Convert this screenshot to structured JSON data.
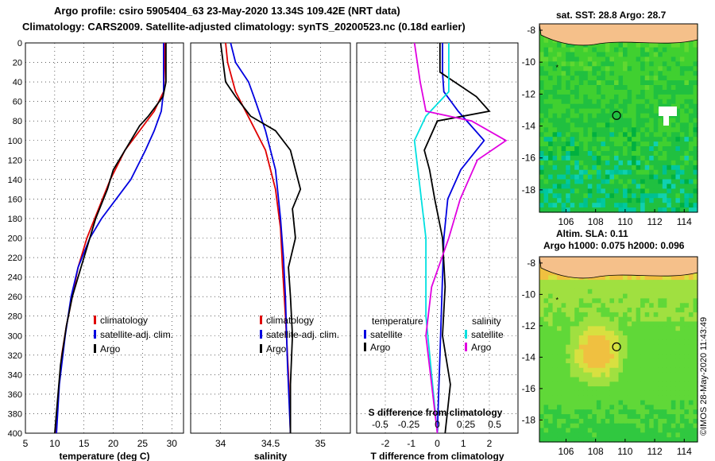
{
  "header": {
    "title_line1": "Argo profile: csiro 5905404_63 23-May-2020 13.34S 109.42E (NRT data)",
    "title_line2": "Climatology: CARS2009. Satellite-adjusted climatology: synTS_20200523.nc (0.18d earlier)"
  },
  "colors": {
    "argo": "#000000",
    "climatology": "#e00000",
    "satellite": "#0000e0",
    "sal_diff": "#e000e0",
    "temp_sat_diff": "#00e0e0"
  },
  "chart_data": [
    {
      "type": "line",
      "title": "",
      "xlabel": "temperature (deg C)",
      "ylabel": "",
      "xlim": [
        5,
        32
      ],
      "ylim": [
        400,
        0
      ],
      "xticks": [
        5,
        10,
        15,
        20,
        25,
        30
      ],
      "yticks": [
        0,
        20,
        40,
        60,
        80,
        100,
        120,
        140,
        160,
        180,
        200,
        220,
        240,
        260,
        280,
        300,
        320,
        340,
        360,
        380,
        400
      ],
      "legend": [
        "climatology",
        "satellite-adj. clim.",
        "Argo"
      ],
      "series": [
        {
          "name": "climatology",
          "color": "#e00000",
          "x": [
            28.8,
            28.8,
            28.6,
            27.0,
            24.5,
            22.0,
            19.5,
            17.5,
            15.5,
            14.0,
            13.0,
            12.0,
            11.2,
            10.6,
            10.2
          ],
          "y": [
            0,
            20,
            50,
            70,
            90,
            110,
            140,
            170,
            200,
            230,
            260,
            290,
            320,
            360,
            400
          ]
        },
        {
          "name": "satellite-adj. clim.",
          "color": "#0000e0",
          "x": [
            28.6,
            28.6,
            28.6,
            28.2,
            27.0,
            25.5,
            23.0,
            20.5,
            18.0,
            16.0,
            14.0,
            12.8,
            11.8,
            10.8,
            10.3
          ],
          "y": [
            0,
            20,
            50,
            70,
            90,
            110,
            140,
            160,
            180,
            200,
            230,
            260,
            300,
            350,
            400
          ]
        },
        {
          "name": "Argo",
          "color": "#000000",
          "x": [
            29.0,
            29.0,
            28.5,
            26.0,
            24.5,
            22.5,
            20.0,
            19.0,
            17.0,
            15.5,
            14.5,
            13.0,
            12.0,
            11.0,
            10.0
          ],
          "y": [
            0,
            40,
            55,
            75,
            85,
            105,
            130,
            150,
            180,
            210,
            230,
            260,
            290,
            330,
            400
          ]
        }
      ]
    },
    {
      "type": "line",
      "title": "",
      "xlabel": "salinity",
      "ylabel": "",
      "xlim": [
        33.7,
        35.3
      ],
      "ylim": [
        400,
        0
      ],
      "xticks": [
        34,
        34.5,
        35
      ],
      "yticks": [
        0,
        20,
        40,
        60,
        80,
        100,
        120,
        140,
        160,
        180,
        200,
        220,
        240,
        260,
        280,
        300,
        320,
        340,
        360,
        380,
        400
      ],
      "legend": [
        "climatology",
        "satellite-adj. clim.",
        "Argo"
      ],
      "series": [
        {
          "name": "climatology",
          "color": "#e00000",
          "x": [
            34.05,
            34.07,
            34.15,
            34.3,
            34.45,
            34.55,
            34.6,
            34.62,
            34.65,
            34.68,
            34.7
          ],
          "y": [
            0,
            20,
            50,
            80,
            110,
            150,
            190,
            230,
            280,
            340,
            400
          ]
        },
        {
          "name": "satellite-adj. clim.",
          "color": "#0000e0",
          "x": [
            34.1,
            34.15,
            34.28,
            34.35,
            34.45,
            34.55,
            34.6,
            34.63,
            34.65,
            34.67,
            34.7
          ],
          "y": [
            0,
            20,
            40,
            60,
            90,
            130,
            180,
            220,
            260,
            330,
            400
          ]
        },
        {
          "name": "Argo",
          "color": "#000000",
          "x": [
            34.0,
            34.05,
            34.15,
            34.3,
            34.55,
            34.7,
            34.75,
            34.8,
            34.72,
            34.75,
            34.68,
            34.7,
            34.72,
            34.7,
            34.7
          ],
          "y": [
            0,
            40,
            55,
            75,
            90,
            110,
            130,
            150,
            170,
            200,
            230,
            260,
            300,
            350,
            400
          ]
        }
      ]
    },
    {
      "type": "line",
      "title": "",
      "xlabel": "T difference from climatology",
      "x2label": "S difference from climatology",
      "ylabel": "",
      "xlim": [
        -3.1,
        3.1
      ],
      "ylim": [
        400,
        0
      ],
      "xticks": [
        -2,
        -1,
        0,
        1,
        2
      ],
      "x2ticks": [
        -0.5,
        -0.25,
        0,
        0.25,
        0.5
      ],
      "x2ticklabels": [
        "-0.5",
        "-0.25",
        "0",
        "0.25",
        "0.5"
      ],
      "yticks": [
        0,
        20,
        40,
        60,
        80,
        100,
        120,
        140,
        160,
        180,
        200,
        220,
        240,
        260,
        280,
        300,
        320,
        340,
        360,
        380,
        400
      ],
      "legend_temperature_heading": "temperature",
      "legend_salinity_heading": "salinity",
      "legend": [
        "satellite",
        "Argo",
        "satellite",
        "Argo"
      ],
      "series": [
        {
          "name": "temperature satellite",
          "color": "#0000e0",
          "x": [
            0.2,
            0.2,
            0.25,
            0.8,
            1.8,
            0.9,
            0.4,
            0.25,
            0.2,
            0.15,
            0.1,
            0.05,
            0.0
          ],
          "y": [
            0,
            30,
            50,
            70,
            100,
            130,
            160,
            200,
            240,
            280,
            320,
            360,
            400
          ]
        },
        {
          "name": "temperature Argo",
          "color": "#000000",
          "x": [
            0.1,
            0.1,
            1.5,
            2.0,
            0.0,
            -0.5,
            -0.3,
            -0.1,
            0.2,
            0.3,
            0.2,
            0.5,
            0.3
          ],
          "y": [
            0,
            30,
            55,
            70,
            80,
            110,
            130,
            160,
            200,
            250,
            300,
            350,
            400
          ]
        },
        {
          "name": "salinity satellite",
          "color": "#00e0e0",
          "x": [
            0.1,
            0.1,
            -0.1,
            -0.2,
            -0.15,
            -0.1,
            -0.1,
            -0.05,
            0.0
          ],
          "y": [
            0,
            50,
            75,
            100,
            150,
            200,
            280,
            340,
            400
          ]
        },
        {
          "name": "salinity Argo",
          "color": "#e000e0",
          "x": [
            -0.2,
            -0.15,
            -0.1,
            0.3,
            0.6,
            0.35,
            0.2,
            0.1,
            -0.05,
            -0.1,
            -0.05,
            0.0
          ],
          "y": [
            0,
            40,
            70,
            80,
            100,
            120,
            160,
            200,
            250,
            300,
            350,
            400
          ]
        }
      ]
    },
    {
      "type": "heatmap",
      "title": "sat. SST: 28.8 Argo: 28.7",
      "xlim": [
        104.2,
        114.9
      ],
      "ylim": [
        -19.4,
        -7.6
      ],
      "xticks": [
        106,
        108,
        110,
        112,
        114
      ],
      "yticks": [
        -8,
        -10,
        -12,
        -14,
        -16,
        -18
      ],
      "xticklabels": [
        "106",
        "108",
        "110",
        "112",
        "114"
      ],
      "yticklabels": [
        "-8",
        "-10",
        "-12",
        "-14",
        "-16",
        "-18"
      ],
      "marker": [
        109.42,
        -13.34
      ]
    },
    {
      "type": "heatmap",
      "title_line1": "Altim. SLA: 0.11",
      "title_line2": "Argo h1000: 0.075 h2000: 0.096",
      "xlim": [
        104.2,
        114.9
      ],
      "ylim": [
        -19.4,
        -7.6
      ],
      "xticks": [
        106,
        108,
        110,
        112,
        114
      ],
      "yticks": [
        -8,
        -10,
        -12,
        -14,
        -16,
        -18
      ],
      "xticklabels": [
        "106",
        "108",
        "110",
        "112",
        "114"
      ],
      "yticklabels": [
        "-8",
        "-10",
        "-12",
        "-14",
        "-16",
        "-18"
      ],
      "marker": [
        109.42,
        -13.34
      ]
    }
  ],
  "footer": {
    "credit": "©IMOS 28-May-2020 11:43:49"
  }
}
